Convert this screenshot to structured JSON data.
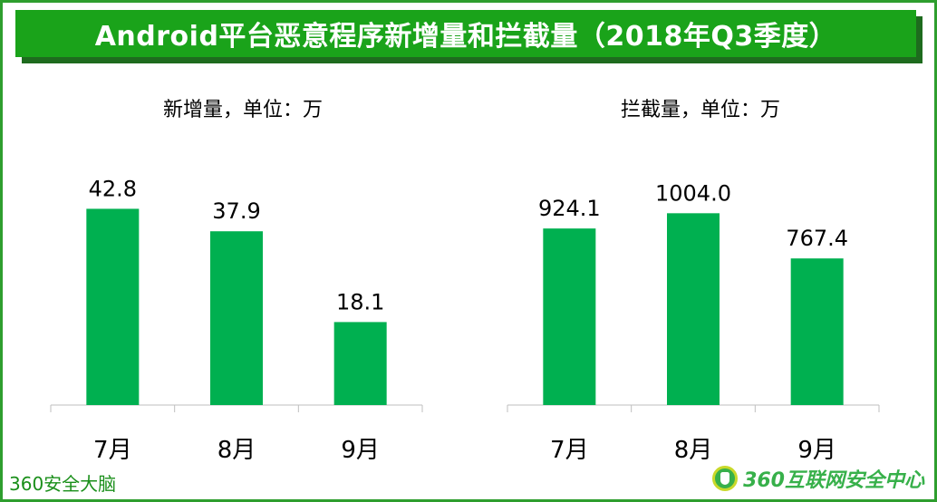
{
  "title": "Android平台恶意程序新增量和拦截量（2018年Q3季度）",
  "source_left": "360安全大脑",
  "brand_right": "360互联网安全中心",
  "colors": {
    "bar": "#00b050",
    "title_bg": "#1aa31a",
    "frame": "#2e9e2e"
  },
  "chart_data": [
    {
      "type": "bar",
      "title": "新增量，单位：万",
      "categories": [
        "7月",
        "8月",
        "9月"
      ],
      "values": [
        42.8,
        37.9,
        18.1
      ],
      "value_labels": [
        "42.8",
        "37.9",
        "18.1"
      ],
      "ylim": [
        0,
        50
      ],
      "xlabel": "",
      "ylabel": "",
      "grid": false
    },
    {
      "type": "bar",
      "title": "拦截量，单位：万",
      "categories": [
        "7月",
        "8月",
        "9月"
      ],
      "values": [
        924.1,
        1004.0,
        767.4
      ],
      "value_labels": [
        "924.1",
        "1004.0",
        "767.4"
      ],
      "ylim": [
        0,
        1200
      ],
      "xlabel": "",
      "ylabel": "",
      "grid": false
    }
  ]
}
